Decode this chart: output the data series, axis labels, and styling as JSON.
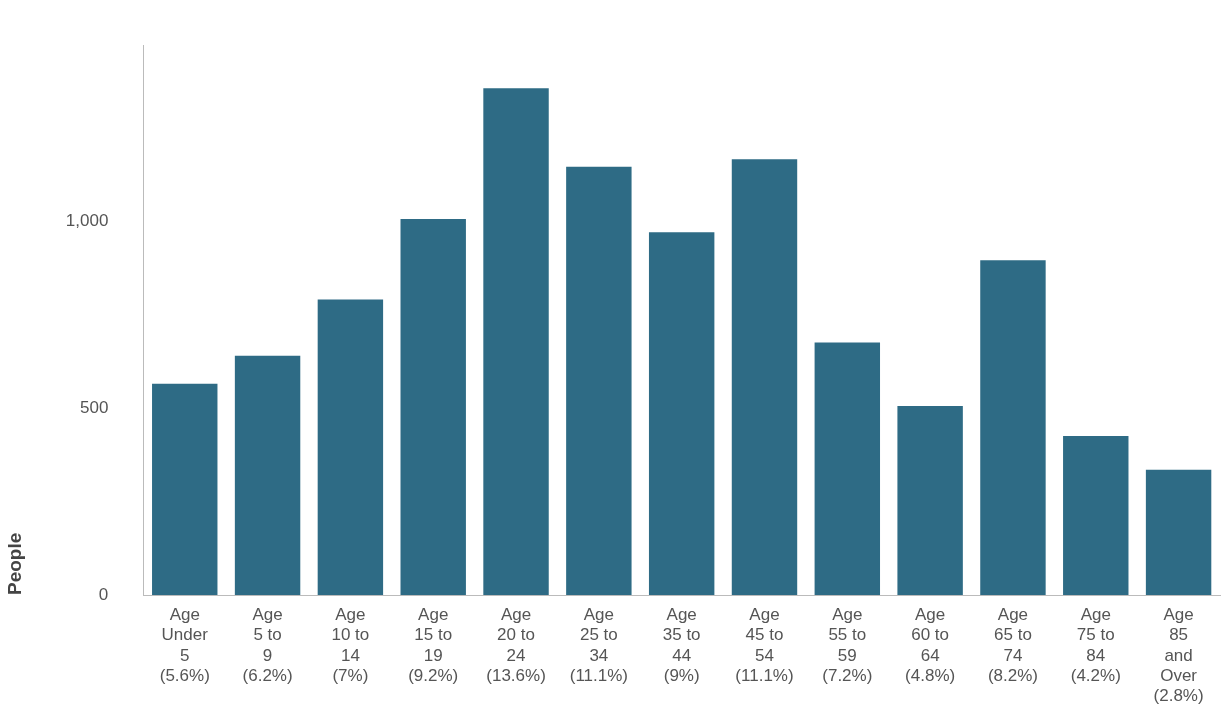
{
  "chart_data": {
    "type": "bar",
    "ylabel": "People",
    "categories": [
      "Age\nUnder\n5\n(5.6%)",
      "Age\n5 to\n9\n(6.2%)",
      "Age\n10 to\n14\n(7%)",
      "Age\n15 to\n19\n(9.2%)",
      "Age\n20 to\n24\n(13.6%)",
      "Age\n25 to\n34\n(11.1%)",
      "Age\n35 to\n44\n(9%)",
      "Age\n45 to\n54\n(11.1%)",
      "Age\n55 to\n59\n(7.2%)",
      "Age\n60 to\n64\n(4.8%)",
      "Age\n65 to\n74\n(8.2%)",
      "Age\n75 to\n84\n(4.2%)",
      "Age\n85\nand\nOver\n(2.8%)"
    ],
    "values": [
      565,
      640,
      790,
      1005,
      1355,
      1145,
      970,
      1165,
      675,
      505,
      895,
      425,
      335
    ],
    "color": "#2e6b85",
    "ylim": [
      0,
      1470
    ],
    "yticks": [
      0,
      500,
      {
        "value": 1000,
        "label": "1,000"
      }
    ],
    "grid": false,
    "legend": false
  }
}
